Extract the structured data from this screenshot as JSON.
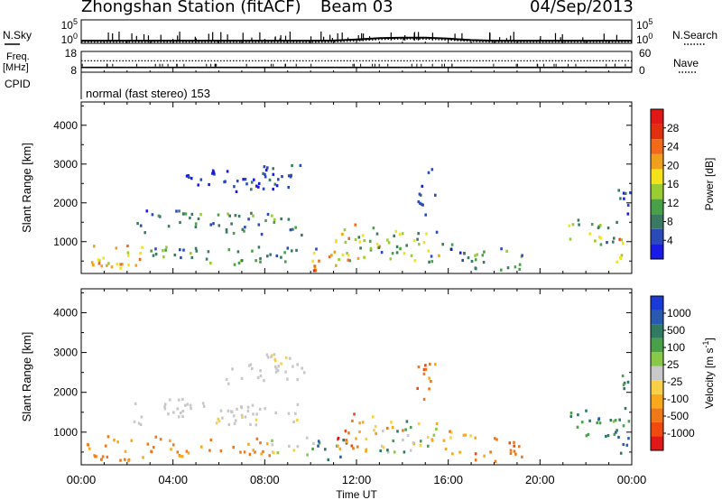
{
  "header": {
    "station": "Zhongshan Station (fitACF)",
    "beam": "Beam 03",
    "date": "04/Sep/2013"
  },
  "chart_data": [
    {
      "type": "line",
      "panel": "sky-search",
      "left_label": "N.Sky",
      "right_label": "N.Search",
      "left_ticks": [
        "10^5",
        "10^0"
      ],
      "right_ticks": [
        "10^5",
        "10^0"
      ],
      "scale": "log",
      "series": [
        {
          "name": "N.Sky",
          "style": "solid",
          "x": [
            0,
            1,
            2,
            3,
            4,
            5,
            6,
            7,
            8,
            9,
            10,
            11,
            12,
            13,
            14,
            15,
            16,
            17,
            18,
            19,
            20,
            21,
            22,
            23,
            24
          ],
          "y_log10": [
            0.55,
            0.55,
            0.55,
            0.55,
            0.55,
            0.55,
            0.55,
            0.55,
            0.55,
            0.55,
            0.55,
            0.6,
            0.8,
            1.1,
            1.2,
            1.2,
            1.0,
            0.7,
            0.55,
            0.55,
            0.55,
            0.55,
            0.55,
            0.55,
            0.55
          ]
        },
        {
          "name": "N.Search",
          "style": "dotted",
          "x": [
            0,
            1,
            2,
            3,
            4,
            5,
            6,
            7,
            8,
            9,
            10,
            11,
            12,
            13,
            14,
            15,
            16,
            17,
            18,
            19,
            20,
            21,
            22,
            23,
            24
          ],
          "y_log10": [
            0.25,
            0.25,
            0.25,
            0.25,
            0.25,
            0.25,
            0.25,
            0.25,
            0.25,
            0.25,
            0.25,
            0.3,
            0.5,
            0.8,
            0.95,
            0.9,
            0.7,
            0.4,
            0.25,
            0.25,
            0.25,
            0.25,
            0.25,
            0.25,
            0.25
          ]
        }
      ]
    },
    {
      "type": "line",
      "panel": "freq-nave",
      "left_label_lines": [
        "Freq.",
        "[MHz]"
      ],
      "right_label": "Nave",
      "left_ticks": [
        18,
        8
      ],
      "right_ticks": [
        60,
        0
      ],
      "series": [
        {
          "name": "Freq",
          "style": "solid",
          "x": [
            0,
            24
          ],
          "y": [
            10.3,
            10.3
          ]
        },
        {
          "name": "Nave",
          "style": "dotted",
          "x": [
            0,
            24
          ],
          "y": [
            33,
            33
          ]
        }
      ]
    },
    {
      "type": "line",
      "panel": "cpid",
      "left_label": "CPID",
      "annotation": "normal (fast stereo) 153"
    },
    {
      "type": "heatmap",
      "panel": "power",
      "ylabel": "Slant Range [km]",
      "yticks": [
        1000,
        2000,
        3000,
        4000
      ],
      "ylim": [
        180,
        4600
      ],
      "xlim": [
        0,
        24
      ],
      "colorbar": {
        "label": "Power [dB]",
        "ticks": [
          4,
          8,
          12,
          16,
          20,
          24,
          28
        ],
        "colors": [
          "#1a1ae8",
          "#2a4ab8",
          "#3a7a62",
          "#48a048",
          "#98cc30",
          "#f4e21a",
          "#f0a01a",
          "#f06a1a",
          "#e03010",
          "#e01818"
        ]
      },
      "regions": [
        {
          "t0": 0.2,
          "t1": 2.8,
          "r0": 350,
          "r1": 950,
          "lvl": [
            4,
            7
          ]
        },
        {
          "t0": 2.8,
          "t1": 5.6,
          "r0": 480,
          "r1": 950,
          "lvl": [
            1,
            4
          ]
        },
        {
          "t0": 5.6,
          "t1": 8.0,
          "r0": 420,
          "r1": 900,
          "lvl": [
            1,
            4
          ]
        },
        {
          "t0": 8.0,
          "t1": 10.2,
          "r0": 500,
          "r1": 900,
          "lvl": [
            1,
            3
          ]
        },
        {
          "t0": 0.4,
          "t1": 2.0,
          "r0": 300,
          "r1": 520,
          "lvl": [
            5,
            8
          ]
        },
        {
          "t0": 2.2,
          "t1": 2.8,
          "r0": 1200,
          "r1": 1800,
          "lvl": [
            0,
            2
          ]
        },
        {
          "t0": 2.8,
          "t1": 4.6,
          "r0": 1650,
          "r1": 1900,
          "lvl": [
            0,
            2
          ]
        },
        {
          "t0": 3.2,
          "t1": 9.8,
          "r0": 1400,
          "r1": 1780,
          "lvl": [
            1,
            4
          ]
        },
        {
          "t0": 5.4,
          "t1": 9.6,
          "r0": 1180,
          "r1": 1420,
          "lvl": [
            1,
            3
          ]
        },
        {
          "t0": 6.2,
          "t1": 9.8,
          "r0": 2250,
          "r1": 2750,
          "lvl": [
            0,
            2
          ]
        },
        {
          "t0": 7.8,
          "t1": 9.6,
          "r0": 2550,
          "r1": 3000,
          "lvl": [
            0,
            2
          ]
        },
        {
          "t0": 4.2,
          "t1": 6.4,
          "r0": 2400,
          "r1": 2900,
          "lvl": [
            0,
            1
          ]
        },
        {
          "t0": 10.0,
          "t1": 11.6,
          "r0": 250,
          "r1": 800,
          "lvl": [
            4,
            8
          ]
        },
        {
          "t0": 11.0,
          "t1": 12.2,
          "r0": 500,
          "r1": 1500,
          "lvl": [
            3,
            7
          ]
        },
        {
          "t0": 12.0,
          "t1": 12.9,
          "r0": 550,
          "r1": 1500,
          "lvl": [
            2,
            5
          ]
        },
        {
          "t0": 12.8,
          "t1": 15.6,
          "r0": 500,
          "r1": 1350,
          "lvl": [
            1,
            6
          ]
        },
        {
          "t0": 14.6,
          "t1": 15.4,
          "r0": 1700,
          "r1": 2950,
          "lvl": [
            0,
            2
          ]
        },
        {
          "t0": 15.6,
          "t1": 17.0,
          "r0": 450,
          "r1": 1100,
          "lvl": [
            0,
            3
          ]
        },
        {
          "t0": 17.0,
          "t1": 19.2,
          "r0": 300,
          "r1": 900,
          "lvl": [
            1,
            4
          ]
        },
        {
          "t0": 21.2,
          "t1": 21.8,
          "r0": 1100,
          "r1": 1700,
          "lvl": [
            2,
            5
          ]
        },
        {
          "t0": 21.9,
          "t1": 22.6,
          "r0": 850,
          "r1": 1650,
          "lvl": [
            2,
            6
          ]
        },
        {
          "t0": 22.6,
          "t1": 23.3,
          "r0": 900,
          "r1": 1500,
          "lvl": [
            1,
            3
          ]
        },
        {
          "t0": 23.1,
          "t1": 24.0,
          "r0": 500,
          "r1": 1350,
          "lvl": [
            4,
            9
          ]
        },
        {
          "t0": 23.3,
          "t1": 24.0,
          "r0": 1500,
          "r1": 2450,
          "lvl": [
            0,
            2
          ]
        }
      ]
    },
    {
      "type": "heatmap",
      "panel": "velocity",
      "ylabel": "Slant Range [km]",
      "yticks": [
        1000,
        2000,
        3000,
        4000
      ],
      "ylim": [
        180,
        4600
      ],
      "xlim": [
        0,
        24
      ],
      "xticks": [
        "00:00",
        "04:00",
        "08:00",
        "12:00",
        "16:00",
        "20:00",
        "00:00"
      ],
      "xlabel": "Time UT",
      "colorbar": {
        "label": "Velocity [m s^-1]",
        "ticks": [
          -1000,
          -500,
          -100,
          -25,
          25,
          100,
          500,
          1000
        ],
        "colors": [
          "#e01818",
          "#f04a10",
          "#f07818",
          "#f8a81a",
          "#f8d048",
          "#c8c8c8",
          "#88c848",
          "#48a048",
          "#307a62",
          "#2a5ab0",
          "#1a3ad8"
        ]
      },
      "regions": [
        {
          "t0": 0.2,
          "t1": 2.8,
          "r0": 300,
          "r1": 950,
          "lvl": [
            2,
            3
          ]
        },
        {
          "t0": 2.8,
          "t1": 6.0,
          "r0": 420,
          "r1": 950,
          "lvl": [
            2,
            3
          ]
        },
        {
          "t0": 6.0,
          "t1": 8.2,
          "r0": 400,
          "r1": 900,
          "lvl": [
            2,
            3
          ]
        },
        {
          "t0": 8.2,
          "t1": 10.2,
          "r0": 450,
          "r1": 900,
          "lvl": [
            4,
            7
          ]
        },
        {
          "t0": 2.8,
          "t1": 4.6,
          "r0": 1600,
          "r1": 1900,
          "lvl": [
            5,
            5
          ]
        },
        {
          "t0": 3.2,
          "t1": 9.8,
          "r0": 1400,
          "r1": 1780,
          "lvl": [
            5,
            5
          ]
        },
        {
          "t0": 5.4,
          "t1": 9.6,
          "r0": 1180,
          "r1": 1420,
          "lvl": [
            4,
            5
          ]
        },
        {
          "t0": 6.2,
          "t1": 9.8,
          "r0": 2250,
          "r1": 2750,
          "lvl": [
            5,
            5
          ]
        },
        {
          "t0": 7.8,
          "t1": 9.6,
          "r0": 2550,
          "r1": 3000,
          "lvl": [
            4,
            5
          ]
        },
        {
          "t0": 2.2,
          "t1": 2.8,
          "r0": 1200,
          "r1": 1800,
          "lvl": [
            5,
            5
          ]
        },
        {
          "t0": 10.0,
          "t1": 11.6,
          "r0": 300,
          "r1": 850,
          "lvl": [
            6,
            9
          ]
        },
        {
          "t0": 11.0,
          "t1": 12.2,
          "r0": 500,
          "r1": 1500,
          "lvl": [
            0,
            3
          ]
        },
        {
          "t0": 12.0,
          "t1": 12.9,
          "r0": 550,
          "r1": 1500,
          "lvl": [
            2,
            4
          ]
        },
        {
          "t0": 12.8,
          "t1": 15.6,
          "r0": 500,
          "r1": 1350,
          "lvl": [
            2,
            8
          ]
        },
        {
          "t0": 14.6,
          "t1": 15.4,
          "r0": 1700,
          "r1": 2950,
          "lvl": [
            1,
            3
          ]
        },
        {
          "t0": 15.6,
          "t1": 17.0,
          "r0": 450,
          "r1": 1100,
          "lvl": [
            2,
            4
          ]
        },
        {
          "t0": 17.0,
          "t1": 19.2,
          "r0": 300,
          "r1": 900,
          "lvl": [
            1,
            3
          ]
        },
        {
          "t0": 21.2,
          "t1": 21.8,
          "r0": 1100,
          "r1": 1700,
          "lvl": [
            7,
            9
          ]
        },
        {
          "t0": 21.9,
          "t1": 22.6,
          "r0": 850,
          "r1": 1650,
          "lvl": [
            7,
            9
          ]
        },
        {
          "t0": 22.6,
          "t1": 23.3,
          "r0": 900,
          "r1": 1500,
          "lvl": [
            6,
            8
          ]
        },
        {
          "t0": 23.1,
          "t1": 24.0,
          "r0": 500,
          "r1": 1350,
          "lvl": [
            7,
            9
          ]
        },
        {
          "t0": 23.3,
          "t1": 24.0,
          "r0": 1500,
          "r1": 2450,
          "lvl": [
            7,
            8
          ]
        }
      ]
    }
  ]
}
